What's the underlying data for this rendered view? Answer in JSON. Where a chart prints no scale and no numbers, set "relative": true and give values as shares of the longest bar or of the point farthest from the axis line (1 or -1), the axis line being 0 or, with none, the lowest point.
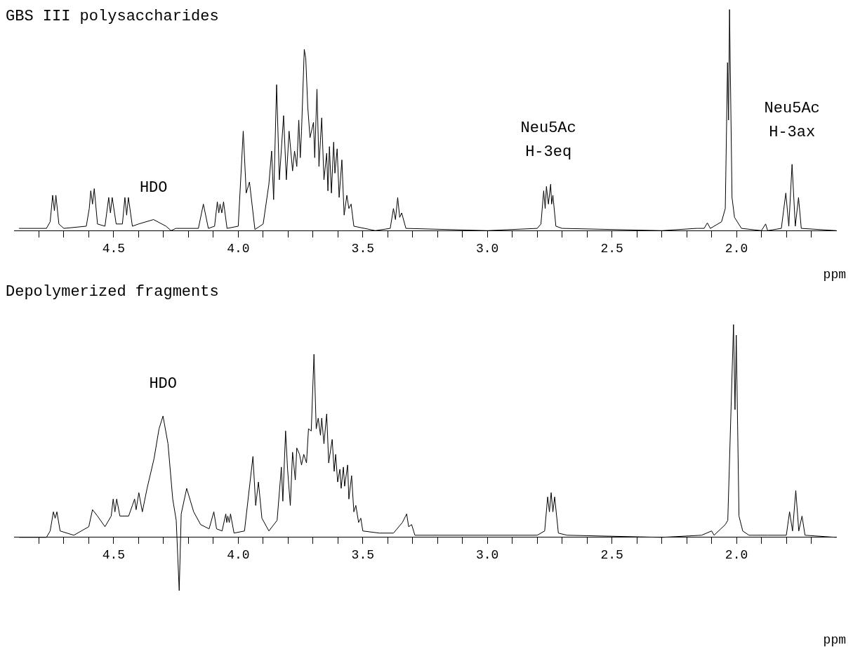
{
  "chart_data": [
    {
      "type": "line",
      "title": "GBS III polysaccharides",
      "xlabel": "ppm",
      "relative": true,
      "color": "#000000",
      "marker": "none",
      "line_style": "solid",
      "xlim": [
        4.9,
        1.6
      ],
      "xticks": [
        {
          "value": 4.8,
          "label": null
        },
        {
          "value": 4.7,
          "label": null
        },
        {
          "value": 4.6,
          "label": null
        },
        4.5,
        {
          "value": 4.4,
          "label": null
        },
        {
          "value": 4.3,
          "label": null
        },
        {
          "value": 4.2,
          "label": null
        },
        {
          "value": 4.1,
          "label": null
        },
        {
          "value": 4,
          "label": "4.0"
        },
        {
          "value": 3.9,
          "label": null
        },
        {
          "value": 3.8,
          "label": null
        },
        {
          "value": 3.7,
          "label": null
        },
        {
          "value": 3.6,
          "label": null
        },
        3.5,
        {
          "value": 3.4,
          "label": null
        },
        {
          "value": 3.3,
          "label": null
        },
        {
          "value": 3.2,
          "label": null
        },
        {
          "value": 3.1,
          "label": null
        },
        {
          "value": 3,
          "label": "3.0"
        },
        {
          "value": 2.9,
          "label": null
        },
        {
          "value": 2.8,
          "label": null
        },
        {
          "value": 2.7,
          "label": null
        },
        {
          "value": 2.6,
          "label": null
        },
        2.5,
        {
          "value": 2.4,
          "label": null
        },
        {
          "value": 2.3,
          "label": null
        },
        {
          "value": 2.2,
          "label": null
        },
        {
          "value": 2.1,
          "label": null
        },
        {
          "value": 2,
          "label": "2.0"
        },
        {
          "value": 1.9,
          "label": null
        },
        {
          "value": 1.8,
          "label": null
        },
        {
          "value": 1.7,
          "label": null
        }
      ],
      "annotations": [
        {
          "text": "HDO",
          "x": 4.34,
          "y": 0.05
        },
        {
          "text": "Neu5Ac\nH-3eq",
          "x": 2.755,
          "y": 0.21
        },
        {
          "text": "Neu5Ac\nH-3ax",
          "x": 1.777,
          "y": 0.3
        }
      ],
      "x": [
        4.88,
        4.77,
        4.755,
        4.745,
        4.738,
        4.732,
        4.72,
        4.7,
        4.61,
        4.598,
        4.592,
        4.585,
        4.578,
        4.565,
        4.535,
        4.52,
        4.513,
        4.506,
        4.49,
        4.465,
        4.455,
        4.448,
        4.441,
        4.425,
        4.4,
        4.34,
        4.29,
        4.27,
        4.25,
        4.16,
        4.14,
        4.12,
        4.095,
        4.084,
        4.078,
        4.073,
        4.066,
        4.059,
        4.045,
        4.0,
        3.98,
        3.968,
        3.955,
        3.933,
        3.9,
        3.877,
        3.866,
        3.858,
        3.846,
        3.835,
        3.818,
        3.807,
        3.796,
        3.782,
        3.774,
        3.765,
        3.757,
        3.751,
        3.746,
        3.735,
        3.729,
        3.721,
        3.712,
        3.698,
        3.693,
        3.684,
        3.676,
        3.67,
        3.665,
        3.656,
        3.645,
        3.64,
        3.634,
        3.626,
        3.617,
        3.612,
        3.603,
        3.595,
        3.584,
        3.575,
        3.564,
        3.556,
        3.547,
        3.536,
        3.45,
        3.39,
        3.377,
        3.369,
        3.36,
        3.352,
        3.344,
        3.327,
        3.0,
        2.8,
        2.785,
        2.774,
        2.768,
        2.763,
        2.755,
        2.746,
        2.742,
        2.737,
        2.725,
        2.7,
        2.3,
        2.16,
        2.154,
        2.13,
        2.117,
        2.105,
        2.06,
        2.045,
        2.036,
        2.032,
        2.028,
        2.018,
        2.008,
        1.98,
        1.9,
        1.883,
        1.875,
        1.82,
        1.802,
        1.79,
        1.777,
        1.764,
        1.751,
        1.74,
        1.6
      ],
      "values": [
        0.01,
        0.01,
        0.04,
        0.16,
        0.09,
        0.16,
        0.03,
        0.01,
        0.02,
        0.1,
        0.18,
        0.12,
        0.19,
        0.03,
        0.02,
        0.15,
        0.08,
        0.15,
        0.03,
        0.03,
        0.15,
        0.07,
        0.15,
        0.02,
        0.03,
        0.05,
        0.02,
        0.0,
        0.01,
        0.01,
        0.12,
        0.01,
        0.02,
        0.13,
        0.08,
        0.12,
        0.08,
        0.13,
        0.01,
        0.02,
        0.45,
        0.17,
        0.22,
        0.005,
        0.03,
        0.21,
        0.36,
        0.14,
        0.66,
        0.23,
        0.52,
        0.23,
        0.45,
        0.27,
        0.36,
        0.29,
        0.5,
        0.33,
        0.45,
        0.82,
        0.78,
        0.56,
        0.42,
        0.49,
        0.33,
        0.64,
        0.29,
        0.41,
        0.51,
        0.23,
        0.35,
        0.18,
        0.38,
        0.17,
        0.4,
        0.26,
        0.37,
        0.15,
        0.32,
        0.07,
        0.16,
        0.1,
        0.12,
        0.02,
        0.0,
        0.01,
        0.1,
        0.05,
        0.15,
        0.06,
        0.08,
        0.01,
        0.0,
        0.01,
        0.03,
        0.18,
        0.1,
        0.2,
        0.12,
        0.21,
        0.12,
        0.16,
        0.02,
        0.01,
        0.0,
        0.01,
        0.01,
        0.01,
        0.035,
        0.01,
        0.04,
        0.1,
        0.76,
        0.5,
        1.0,
        0.15,
        0.06,
        0.01,
        0.0,
        0.03,
        0.0,
        0.01,
        0.17,
        0.02,
        0.3,
        0.02,
        0.15,
        0.01,
        0.0
      ]
    },
    {
      "type": "line",
      "title": "Depolymerized fragments",
      "xlabel": "ppm",
      "relative": true,
      "color": "#000000",
      "marker": "none",
      "line_style": "solid",
      "xlim": [
        4.9,
        1.6
      ],
      "xticks": [
        {
          "value": 4.8,
          "label": null
        },
        {
          "value": 4.7,
          "label": null
        },
        {
          "value": 4.6,
          "label": null
        },
        4.5,
        {
          "value": 4.4,
          "label": null
        },
        {
          "value": 4.3,
          "label": null
        },
        {
          "value": 4.2,
          "label": null
        },
        {
          "value": 4.1,
          "label": null
        },
        {
          "value": 4,
          "label": "4.0"
        },
        {
          "value": 3.9,
          "label": null
        },
        {
          "value": 3.8,
          "label": null
        },
        {
          "value": 3.7,
          "label": null
        },
        {
          "value": 3.6,
          "label": null
        },
        3.5,
        {
          "value": 3.4,
          "label": null
        },
        {
          "value": 3.3,
          "label": null
        },
        {
          "value": 3.2,
          "label": null
        },
        {
          "value": 3.1,
          "label": null
        },
        {
          "value": 3,
          "label": "3.0"
        },
        {
          "value": 2.9,
          "label": null
        },
        {
          "value": 2.8,
          "label": null
        },
        {
          "value": 2.7,
          "label": null
        },
        {
          "value": 2.6,
          "label": null
        },
        2.5,
        {
          "value": 2.4,
          "label": null
        },
        {
          "value": 2.3,
          "label": null
        },
        {
          "value": 2.2,
          "label": null
        },
        {
          "value": 2.1,
          "label": null
        },
        {
          "value": 2,
          "label": "2.0"
        },
        {
          "value": 1.9,
          "label": null
        },
        {
          "value": 1.8,
          "label": null
        },
        {
          "value": 1.7,
          "label": null
        }
      ],
      "annotations": [
        {
          "text": "HDO",
          "x": 4.302,
          "y": 0.57
        }
      ],
      "x": [
        4.88,
        4.77,
        4.755,
        4.742,
        4.735,
        4.728,
        4.715,
        4.66,
        4.6,
        4.585,
        4.565,
        4.535,
        4.51,
        4.502,
        4.495,
        4.488,
        4.475,
        4.44,
        4.425,
        4.416,
        4.41,
        4.399,
        4.385,
        4.366,
        4.338,
        4.318,
        4.302,
        4.282,
        4.263,
        4.249,
        4.237,
        4.229,
        4.207,
        4.179,
        4.151,
        4.117,
        4.098,
        4.087,
        4.065,
        4.05,
        4.046,
        4.042,
        4.036,
        4.031,
        4.017,
        3.975,
        3.941,
        3.93,
        3.919,
        3.905,
        3.877,
        3.844,
        3.827,
        3.821,
        3.81,
        3.802,
        3.791,
        3.782,
        3.771,
        3.765,
        3.754,
        3.746,
        3.737,
        3.726,
        3.718,
        3.707,
        3.696,
        3.687,
        3.679,
        3.67,
        3.665,
        3.656,
        3.645,
        3.637,
        3.623,
        3.615,
        3.609,
        3.601,
        3.592,
        3.587,
        3.578,
        3.573,
        3.561,
        3.556,
        3.545,
        3.536,
        3.528,
        3.517,
        3.508,
        3.5,
        3.433,
        3.377,
        3.341,
        3.324,
        3.316,
        3.304,
        3.291,
        3.0,
        2.8,
        2.77,
        2.758,
        2.751,
        2.744,
        2.737,
        2.73,
        2.715,
        2.68,
        2.3,
        2.14,
        2.1,
        2.09,
        2.045,
        2.035,
        2.012,
        2.006,
        2.001,
        1.99,
        1.975,
        1.95,
        1.875,
        1.8,
        1.787,
        1.775,
        1.762,
        1.75,
        1.737,
        1.725,
        1.6
      ],
      "values": [
        0.0,
        0.0,
        0.03,
        0.12,
        0.09,
        0.12,
        0.03,
        0.01,
        0.05,
        0.13,
        0.1,
        0.05,
        0.1,
        0.18,
        0.12,
        0.18,
        0.1,
        0.1,
        0.15,
        0.18,
        0.13,
        0.21,
        0.12,
        0.23,
        0.37,
        0.51,
        0.57,
        0.44,
        0.18,
        0.08,
        -0.25,
        0.11,
        0.23,
        0.12,
        0.06,
        0.04,
        0.12,
        0.04,
        0.03,
        0.11,
        0.07,
        0.1,
        0.07,
        0.11,
        0.02,
        0.03,
        0.38,
        0.15,
        0.26,
        0.09,
        0.03,
        0.08,
        0.33,
        0.17,
        0.5,
        0.32,
        0.15,
        0.4,
        0.27,
        0.42,
        0.39,
        0.34,
        0.39,
        0.35,
        0.51,
        0.5,
        0.86,
        0.51,
        0.56,
        0.48,
        0.56,
        0.44,
        0.58,
        0.35,
        0.46,
        0.31,
        0.39,
        0.26,
        0.32,
        0.23,
        0.33,
        0.24,
        0.34,
        0.18,
        0.29,
        0.12,
        0.15,
        0.07,
        0.09,
        0.03,
        0.02,
        0.02,
        0.07,
        0.11,
        0.05,
        0.06,
        0.01,
        0.01,
        0.01,
        0.03,
        0.19,
        0.12,
        0.21,
        0.12,
        0.19,
        0.02,
        0.01,
        0.0,
        0.01,
        0.03,
        0.01,
        0.06,
        0.08,
        1.0,
        0.6,
        0.95,
        0.1,
        0.03,
        0.01,
        0.01,
        0.01,
        0.12,
        0.03,
        0.22,
        0.03,
        0.1,
        0.01,
        0.0
      ]
    }
  ]
}
